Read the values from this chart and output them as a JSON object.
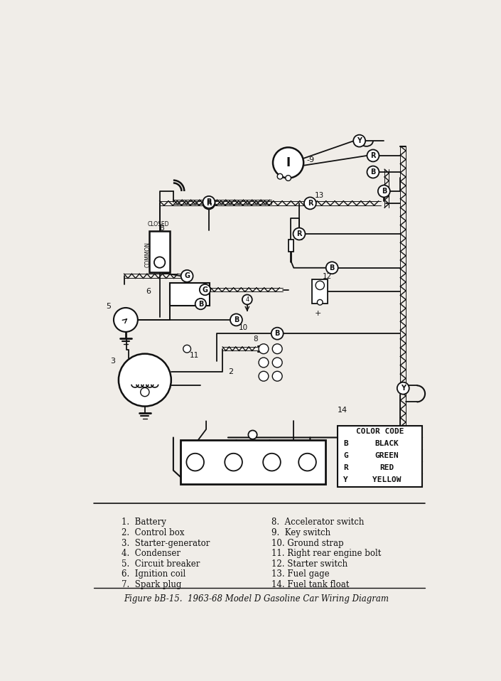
{
  "title": "Figure bB-15.  1963-68 Model D Gasoline Car Wiring Diagram",
  "bg": "#f0ede8",
  "lc": "#111111",
  "fig_w": 7.05,
  "fig_h": 9.58,
  "legend_items": [
    [
      "B",
      "BLACK"
    ],
    [
      "G",
      "GREEN"
    ],
    [
      "R",
      "RED"
    ],
    [
      "Y",
      "YELLOW"
    ]
  ],
  "parts_col1": [
    "1.  Battery",
    "2.  Control box",
    "3.  Starter-generator",
    "4.  Condenser",
    "5.  Circuit breaker",
    "6.  Ignition coil",
    "7.  Spark plug"
  ],
  "parts_col2": [
    "8.  Accelerator switch",
    "9.  Key switch",
    "10. Ground strap",
    "11. Right rear engine bolt",
    "12. Starter switch",
    "13. Fuel gage",
    "14. Fuel tank float"
  ]
}
